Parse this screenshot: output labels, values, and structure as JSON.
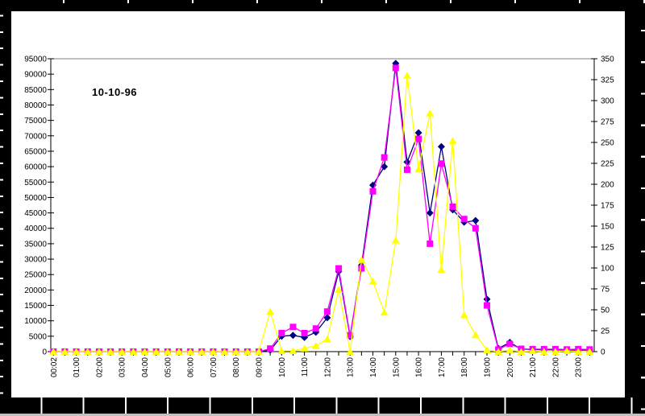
{
  "frame": {
    "background": "#000000",
    "canvas_background": "#ffffff",
    "bottom_strip_color": "#c0c0c0"
  },
  "chart_data": {
    "type": "line",
    "title": "10-10-96",
    "legend": "none",
    "grid": "top-gridline-only",
    "gridline_color": "#808080",
    "axis_color": "#000000",
    "x_axis": {
      "tick_labels": [
        "00:02",
        "01:00",
        "02:00",
        "03:00",
        "04:00",
        "05:00",
        "06:00",
        "07:00",
        "08:00",
        "09:00",
        "10:00",
        "11:00",
        "12:00",
        "13:00",
        "14:00",
        "15:00",
        "16:00",
        "17:00",
        "18:00",
        "19:00",
        "20:00",
        "21:00",
        "22:00",
        "23:00"
      ],
      "points_per_label": 2,
      "label_rotation": -90
    },
    "left_axis": {
      "min": 0,
      "max": 95000,
      "step": 5000,
      "tick_labels": [
        "0",
        "5000",
        "10000",
        "15000",
        "20000",
        "25000",
        "30000",
        "35000",
        "40000",
        "45000",
        "50000",
        "55000",
        "60000",
        "65000",
        "70000",
        "75000",
        "80000",
        "85000",
        "90000",
        "95000"
      ]
    },
    "right_axis": {
      "min": 0,
      "max": 350,
      "step": 25,
      "tick_labels": [
        "0",
        "25",
        "50",
        "75",
        "100",
        "125",
        "150",
        "175",
        "200",
        "225",
        "250",
        "275",
        "300",
        "325",
        "350"
      ]
    },
    "series": [
      {
        "name": "series-1-navy-diamond",
        "marker": "diamond",
        "color": "#000080",
        "axis": "left",
        "values": [
          0,
          0,
          0,
          0,
          0,
          0,
          0,
          0,
          0,
          0,
          0,
          0,
          0,
          0,
          0,
          0,
          0,
          0,
          0,
          500,
          5000,
          5300,
          4600,
          6300,
          11000,
          26000,
          4900,
          28000,
          54000,
          60000,
          93500,
          61500,
          71000,
          45000,
          66500,
          46000,
          42000,
          42500,
          17000,
          1000,
          3000,
          800,
          700,
          600,
          600,
          500,
          500,
          500
        ]
      },
      {
        "name": "series-2-magenta-square",
        "marker": "square",
        "color": "#ff00ff",
        "axis": "left",
        "values": [
          0,
          0,
          0,
          0,
          0,
          0,
          0,
          0,
          0,
          0,
          0,
          0,
          0,
          0,
          0,
          0,
          0,
          0,
          0,
          1000,
          6000,
          8000,
          6000,
          7500,
          13000,
          27000,
          5300,
          27000,
          52000,
          63000,
          92000,
          59000,
          69000,
          35000,
          61000,
          47000,
          43000,
          40000,
          15000,
          700,
          2500,
          900,
          800,
          800,
          800,
          700,
          800,
          700
        ]
      },
      {
        "name": "series-3-yellow-triangle",
        "marker": "triangle",
        "color": "#ffff00",
        "axis": "right",
        "values": [
          0,
          0,
          0,
          0,
          0,
          0,
          0,
          0,
          0,
          0,
          0,
          0,
          0,
          0,
          0,
          0,
          0,
          0,
          0,
          48,
          1,
          1,
          4,
          7,
          15,
          74,
          0,
          110,
          84,
          47,
          133,
          330,
          218,
          285,
          98,
          252,
          44,
          20,
          2,
          0,
          2,
          0,
          1,
          0,
          0,
          1,
          0,
          0
        ]
      }
    ]
  }
}
